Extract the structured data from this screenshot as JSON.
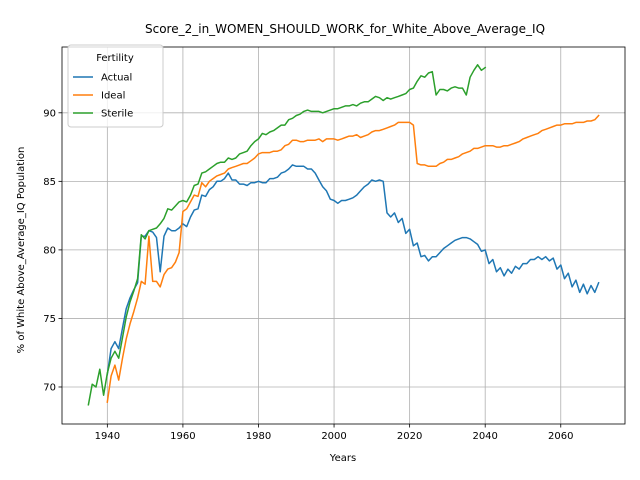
{
  "chart_data": {
    "type": "line",
    "title": "Score_2_in_WOMEN_SHOULD_WORK_for_White_Above_Average_IQ",
    "xlabel": "Years",
    "ylabel": "% of White Above_Average_IQ Population",
    "xlim": [
      1928,
      2077
    ],
    "ylim": [
      67.3,
      94.8
    ],
    "xticks": [
      1940,
      1960,
      1980,
      2000,
      2020,
      2040,
      2060
    ],
    "yticks": [
      70,
      75,
      80,
      85,
      90
    ],
    "grid": true,
    "legend": {
      "title": "Fertility",
      "placement": "top-left"
    },
    "series": [
      {
        "name": "Actual",
        "color": "#1f77b4",
        "x": [
          1940,
          1941,
          1942,
          1943,
          1944,
          1945,
          1946,
          1947,
          1948,
          1949,
          1950,
          1951,
          1952,
          1953,
          1954,
          1955,
          1956,
          1957,
          1958,
          1959,
          1960,
          1961,
          1962,
          1963,
          1964,
          1965,
          1966,
          1967,
          1968,
          1969,
          1970,
          1971,
          1972,
          1973,
          1974,
          1975,
          1976,
          1977,
          1978,
          1979,
          1980,
          1981,
          1982,
          1983,
          1984,
          1985,
          1986,
          1987,
          1988,
          1989,
          1990,
          1991,
          1992,
          1993,
          1994,
          1995,
          1996,
          1997,
          1998,
          1999,
          2000,
          2001,
          2002,
          2003,
          2004,
          2005,
          2006,
          2007,
          2008,
          2009,
          2010,
          2011,
          2012,
          2013,
          2014,
          2015,
          2016,
          2017,
          2018,
          2019,
          2020,
          2021,
          2022,
          2023,
          2024,
          2025,
          2026,
          2027,
          2028,
          2029,
          2030,
          2031,
          2032,
          2033,
          2034,
          2035,
          2036,
          2037,
          2038,
          2039,
          2040,
          2041,
          2042,
          2043,
          2044,
          2045,
          2046,
          2047,
          2048,
          2049,
          2050,
          2051,
          2052,
          2053,
          2054,
          2055,
          2056,
          2057,
          2058,
          2059,
          2060,
          2061,
          2062,
          2063,
          2064,
          2065,
          2066,
          2067,
          2068,
          2069,
          2070
        ],
        "values": [
          70.9,
          72.8,
          73.3,
          72.8,
          74.3,
          75.7,
          76.5,
          77.1,
          77.6,
          81.0,
          81.0,
          81.4,
          81.3,
          80.9,
          78.4,
          81.0,
          81.6,
          81.4,
          81.4,
          81.6,
          81.9,
          81.7,
          82.4,
          82.9,
          83.0,
          84.0,
          83.9,
          84.4,
          84.6,
          85.0,
          85.0,
          85.2,
          85.6,
          85.1,
          85.1,
          84.8,
          84.8,
          84.7,
          84.9,
          84.9,
          85.0,
          84.9,
          84.9,
          85.2,
          85.2,
          85.3,
          85.6,
          85.7,
          85.9,
          86.2,
          86.1,
          86.1,
          86.1,
          85.9,
          85.9,
          85.6,
          85.1,
          84.6,
          84.3,
          83.7,
          83.6,
          83.4,
          83.6,
          83.6,
          83.7,
          83.8,
          84.0,
          84.3,
          84.6,
          84.8,
          85.1,
          85.0,
          85.1,
          85.0,
          82.7,
          82.4,
          82.7,
          82.0,
          82.3,
          81.2,
          81.5,
          80.3,
          80.5,
          79.5,
          79.6,
          79.2,
          79.5,
          79.5,
          79.8,
          80.1,
          80.3,
          80.5,
          80.7,
          80.8,
          80.9,
          80.9,
          80.8,
          80.6,
          80.4,
          79.9,
          80.0,
          79.0,
          79.3,
          78.4,
          78.7,
          78.1,
          78.6,
          78.3,
          78.8,
          78.6,
          79.0,
          79.0,
          79.3,
          79.3,
          79.5,
          79.3,
          79.5,
          79.2,
          79.4,
          78.6,
          78.9,
          77.9,
          78.3,
          77.3,
          77.8,
          76.9,
          77.5,
          76.8,
          77.4,
          76.9,
          77.6
        ]
      },
      {
        "name": "Ideal",
        "color": "#ff7f0e",
        "x": [
          1940,
          1941,
          1942,
          1943,
          1944,
          1945,
          1946,
          1947,
          1948,
          1949,
          1950,
          1951,
          1952,
          1953,
          1954,
          1955,
          1956,
          1957,
          1958,
          1959,
          1960,
          1961,
          1962,
          1963,
          1964,
          1965,
          1966,
          1967,
          1968,
          1969,
          1970,
          1971,
          1972,
          1973,
          1974,
          1975,
          1976,
          1977,
          1978,
          1979,
          1980,
          1981,
          1982,
          1983,
          1984,
          1985,
          1986,
          1987,
          1988,
          1989,
          1990,
          1991,
          1992,
          1993,
          1994,
          1995,
          1996,
          1997,
          1998,
          1999,
          2000,
          2001,
          2002,
          2003,
          2004,
          2005,
          2006,
          2007,
          2008,
          2009,
          2010,
          2011,
          2012,
          2013,
          2014,
          2015,
          2016,
          2017,
          2018,
          2019,
          2020,
          2021,
          2022,
          2023,
          2024,
          2025,
          2026,
          2027,
          2028,
          2029,
          2030,
          2031,
          2032,
          2033,
          2034,
          2035,
          2036,
          2037,
          2038,
          2039,
          2040,
          2041,
          2042,
          2043,
          2044,
          2045,
          2046,
          2047,
          2048,
          2049,
          2050,
          2051,
          2052,
          2053,
          2054,
          2055,
          2056,
          2057,
          2058,
          2059,
          2060,
          2061,
          2062,
          2063,
          2064,
          2065,
          2066,
          2067,
          2068,
          2069,
          2070
        ],
        "values": [
          68.9,
          70.8,
          71.6,
          70.5,
          72.1,
          73.5,
          74.6,
          75.5,
          76.5,
          77.7,
          77.5,
          81.0,
          77.7,
          77.7,
          77.3,
          78.2,
          78.6,
          78.7,
          79.1,
          79.8,
          82.8,
          83.0,
          83.5,
          84.0,
          83.9,
          84.9,
          84.6,
          85.0,
          85.2,
          85.4,
          85.5,
          85.6,
          85.9,
          86.0,
          86.1,
          86.2,
          86.3,
          86.3,
          86.5,
          86.7,
          87.0,
          87.1,
          87.1,
          87.1,
          87.2,
          87.2,
          87.3,
          87.6,
          87.7,
          88.0,
          88.0,
          87.9,
          87.9,
          88.0,
          88.0,
          88.0,
          88.1,
          87.9,
          88.1,
          88.1,
          88.1,
          88.0,
          88.1,
          88.2,
          88.3,
          88.3,
          88.4,
          88.2,
          88.3,
          88.4,
          88.6,
          88.7,
          88.7,
          88.8,
          88.9,
          89.0,
          89.1,
          89.3,
          89.3,
          89.3,
          89.3,
          89.1,
          86.3,
          86.2,
          86.2,
          86.1,
          86.1,
          86.1,
          86.3,
          86.4,
          86.6,
          86.6,
          86.7,
          86.8,
          87.0,
          87.1,
          87.2,
          87.4,
          87.4,
          87.5,
          87.6,
          87.6,
          87.6,
          87.5,
          87.5,
          87.6,
          87.6,
          87.7,
          87.8,
          87.9,
          88.1,
          88.2,
          88.3,
          88.4,
          88.5,
          88.7,
          88.8,
          88.9,
          89.0,
          89.1,
          89.1,
          89.2,
          89.2,
          89.2,
          89.3,
          89.3,
          89.3,
          89.4,
          89.4,
          89.5,
          89.8
        ]
      },
      {
        "name": "Sterile",
        "color": "#2ca02c",
        "x": [
          1935,
          1936,
          1937,
          1938,
          1939,
          1940,
          1941,
          1942,
          1943,
          1944,
          1945,
          1946,
          1947,
          1948,
          1949,
          1950,
          1951,
          1952,
          1953,
          1954,
          1955,
          1956,
          1957,
          1958,
          1959,
          1960,
          1961,
          1962,
          1963,
          1964,
          1965,
          1966,
          1967,
          1968,
          1969,
          1970,
          1971,
          1972,
          1973,
          1974,
          1975,
          1976,
          1977,
          1978,
          1979,
          1980,
          1981,
          1982,
          1983,
          1984,
          1985,
          1986,
          1987,
          1988,
          1989,
          1990,
          1991,
          1992,
          1993,
          1994,
          1995,
          1996,
          1997,
          1998,
          1999,
          2000,
          2001,
          2002,
          2003,
          2004,
          2005,
          2006,
          2007,
          2008,
          2009,
          2010,
          2011,
          2012,
          2013,
          2014,
          2015,
          2016,
          2017,
          2018,
          2019,
          2020,
          2021,
          2022,
          2023,
          2024,
          2025,
          2026,
          2027,
          2028,
          2029,
          2030,
          2031,
          2032,
          2033,
          2034,
          2035,
          2036,
          2037,
          2038,
          2039,
          2040
        ],
        "values": [
          68.7,
          70.2,
          70.0,
          71.3,
          69.4,
          71.0,
          72.1,
          72.6,
          72.1,
          73.6,
          75.1,
          76.2,
          77.0,
          77.9,
          81.1,
          80.8,
          81.4,
          81.5,
          81.6,
          81.9,
          82.3,
          83.0,
          82.9,
          83.2,
          83.5,
          83.6,
          83.5,
          84.0,
          84.7,
          84.8,
          85.6,
          85.7,
          85.9,
          86.1,
          86.3,
          86.4,
          86.4,
          86.7,
          86.6,
          86.7,
          87.0,
          87.1,
          87.2,
          87.6,
          87.9,
          88.1,
          88.5,
          88.4,
          88.6,
          88.7,
          88.9,
          89.1,
          89.1,
          89.5,
          89.6,
          89.8,
          89.9,
          90.1,
          90.2,
          90.1,
          90.1,
          90.1,
          90.0,
          90.1,
          90.2,
          90.3,
          90.3,
          90.4,
          90.5,
          90.5,
          90.6,
          90.5,
          90.7,
          90.8,
          90.8,
          91.0,
          91.2,
          91.1,
          90.9,
          91.1,
          91.0,
          91.1,
          91.2,
          91.3,
          91.4,
          91.7,
          91.8,
          92.3,
          92.7,
          92.6,
          92.9,
          93.0,
          91.3,
          91.7,
          91.7,
          91.6,
          91.8,
          91.9,
          91.8,
          91.8,
          91.3,
          92.6,
          93.1,
          93.5,
          93.1,
          93.3
        ]
      }
    ]
  }
}
